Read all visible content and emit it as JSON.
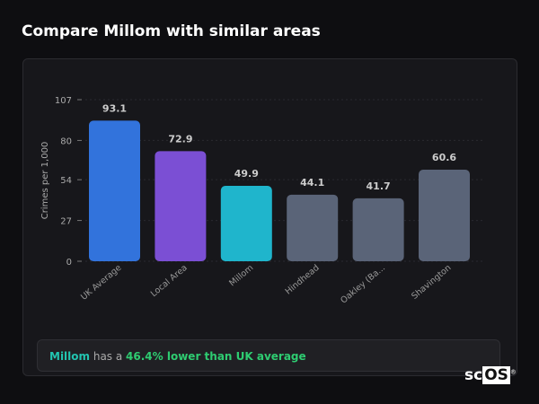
{
  "header": {
    "title": "Compare Millom with similar areas"
  },
  "chart_data": {
    "type": "bar",
    "categories": [
      "UK Average",
      "Local Area",
      "Millom",
      "Hindhead",
      "Oakley (Ba...",
      "Shavington"
    ],
    "values": [
      93.1,
      72.9,
      49.9,
      44.1,
      41.7,
      60.6
    ],
    "colors": [
      "#3273dc",
      "#7b4fd4",
      "#1fb5cc",
      "#5a6478",
      "#5a6478",
      "#5a6478"
    ],
    "ylabel": "Crimes per 1,000",
    "yticks": [
      0,
      27,
      54,
      80,
      107
    ],
    "ylim": [
      0,
      107
    ],
    "grid": true
  },
  "summary": {
    "area": "Millom",
    "middle": " has a ",
    "comparison": "46.4% lower than UK average",
    "area_color": "#22c4b0",
    "comparison_color": "#2ecc71"
  },
  "logo": {
    "text_a": "sc",
    "text_b": "OS",
    "mark": "®"
  }
}
